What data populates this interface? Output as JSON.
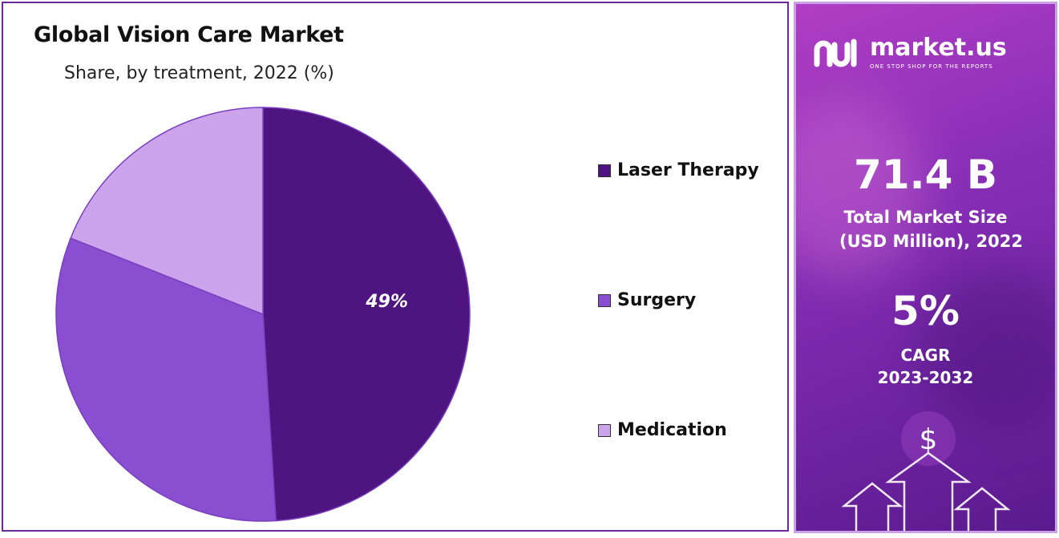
{
  "title": "Global Vision Care Market",
  "subtitle": "Share, by treatment, 2022 (%)",
  "chart_data": {
    "type": "pie",
    "title": "Global Vision Care Market",
    "subtitle": "Share, by treatment, 2022 (%)",
    "categories": [
      "Laser Therapy",
      "Surgery",
      "Medication"
    ],
    "values": [
      49,
      32,
      19
    ],
    "colors": [
      "#4e1580",
      "#8a4fd0",
      "#cca4ec"
    ],
    "data_labels": [
      "49%",
      "",
      ""
    ],
    "legend_position": "right"
  },
  "legend": {
    "items": [
      {
        "label": "Laser Therapy",
        "color": "#4e1580"
      },
      {
        "label": "Surgery",
        "color": "#8a4fd0"
      },
      {
        "label": "Medication",
        "color": "#cca4ec"
      }
    ]
  },
  "info": {
    "brand_name": "market.us",
    "brand_tagline": "ONE STOP SHOP FOR THE REPORTS",
    "market_size_value": "71.4 B",
    "market_size_label_1": "Total Market Size",
    "market_size_label_2": "(USD Million), 2022",
    "cagr_value": "5%",
    "cagr_label": "CAGR",
    "cagr_period": "2023-2032",
    "currency_symbol": "$",
    "background_color": "#8a2fb8"
  }
}
